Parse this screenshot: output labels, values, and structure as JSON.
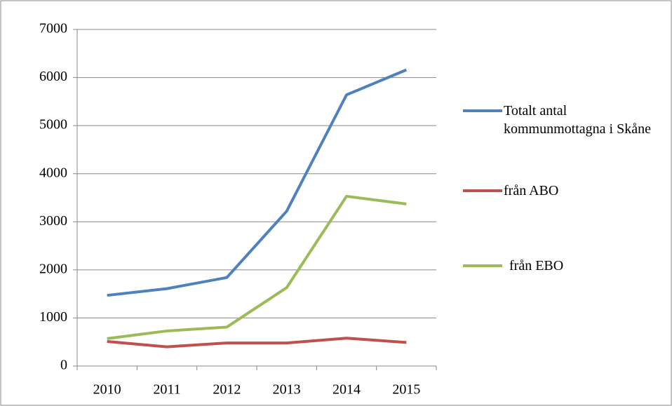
{
  "chart_data": {
    "type": "line",
    "categories": [
      "2010",
      "2011",
      "2012",
      "2013",
      "2014",
      "2015"
    ],
    "series": [
      {
        "name": "Totalt antal kommunmottagna i Skåne",
        "color": "#4f81bd",
        "values": [
          1470,
          1610,
          1840,
          3220,
          5640,
          6160
        ]
      },
      {
        "name": "från ABO",
        "color": "#c0504d",
        "values": [
          510,
          400,
          480,
          480,
          580,
          490
        ]
      },
      {
        "name": "från EBO",
        "color": "#9bbb59",
        "values": [
          570,
          730,
          810,
          1630,
          3530,
          3370
        ]
      }
    ],
    "ylim": [
      0,
      7000
    ],
    "yticks": [
      0,
      1000,
      2000,
      3000,
      4000,
      5000,
      6000,
      7000
    ],
    "grid": true,
    "legend": "right"
  }
}
